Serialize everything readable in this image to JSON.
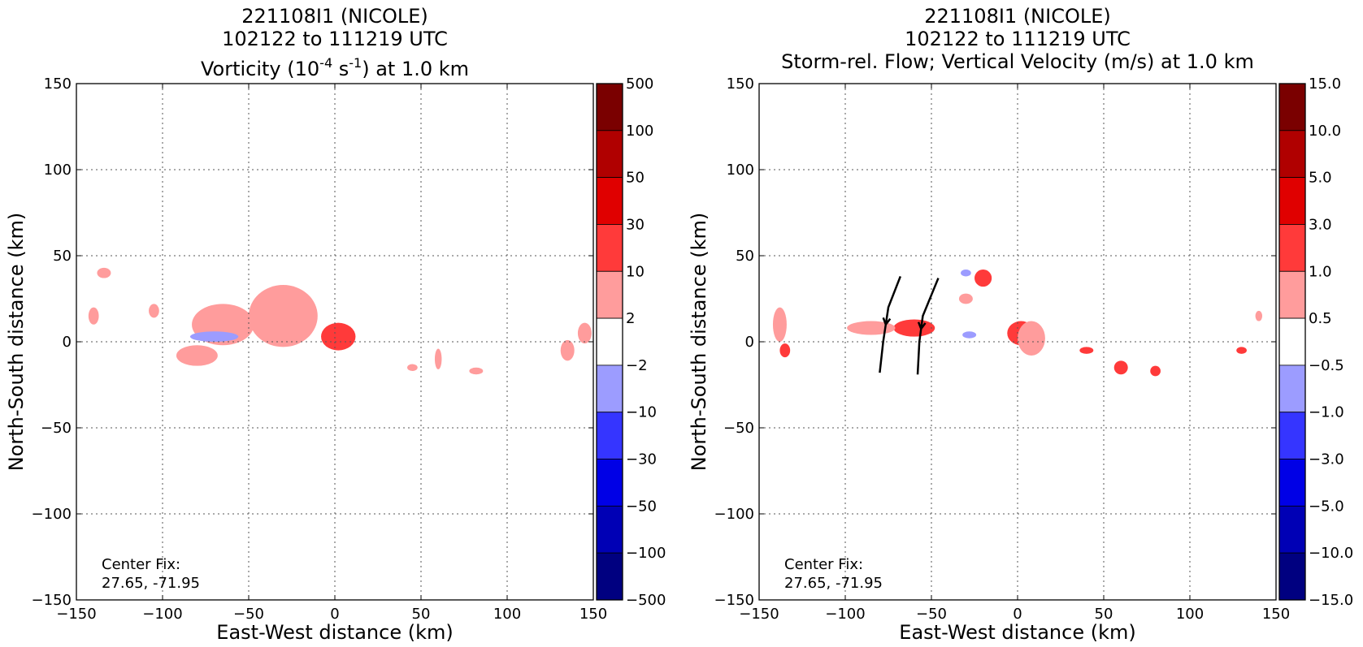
{
  "chart_data": [
    {
      "type": "heatmap",
      "title_lines": [
        "221108I1 (NICOLE)",
        "102122 to 111219 UTC"
      ],
      "title_product": {
        "prefix": "Vorticity (10",
        "exp1": "-4",
        "mid": " s",
        "exp2": "-1",
        "suffix": ") at 1.0 km"
      },
      "xlabel": "East-West distance (km)",
      "ylabel": "North-South distance (km)",
      "xlim": [
        -150,
        150
      ],
      "ylim": [
        -150,
        150
      ],
      "xticks": [
        "−150",
        "−100",
        "−50",
        "0",
        "50",
        "100",
        "150"
      ],
      "yticks": [
        "150",
        "100",
        "50",
        "0",
        "−50",
        "−100",
        "−150"
      ],
      "grid": true,
      "annotation": [
        "Center Fix:",
        "27.65, -71.95"
      ],
      "colorbar": {
        "labels": [
          "500",
          "100",
          "50",
          "30",
          "10",
          "2",
          "−2",
          "−10",
          "−30",
          "−50",
          "−100",
          "−500"
        ],
        "colors": [
          "#7a0000",
          "#b00000",
          "#e00000",
          "#ff3a3a",
          "#ff9c9c",
          "#ffffff",
          "#9c9cff",
          "#3535ff",
          "#0000e6",
          "#0000b5",
          "#000080"
        ]
      },
      "features": [
        {
          "x": 2,
          "y": 3,
          "rx": 10,
          "ry": 8,
          "level": "10-30"
        },
        {
          "x": -30,
          "y": 15,
          "rx": 20,
          "ry": 18,
          "level": "2-10"
        },
        {
          "x": -65,
          "y": 10,
          "rx": 18,
          "ry": 12,
          "level": "2-10"
        },
        {
          "x": -80,
          "y": -8,
          "rx": 12,
          "ry": 6,
          "level": "2-10"
        },
        {
          "x": -70,
          "y": 3,
          "rx": 14,
          "ry": 3,
          "level": "-10--2"
        },
        {
          "x": -134,
          "y": 40,
          "rx": 4,
          "ry": 3,
          "level": "2-10"
        },
        {
          "x": -140,
          "y": 15,
          "rx": 3,
          "ry": 5,
          "level": "2-10"
        },
        {
          "x": -105,
          "y": 18,
          "rx": 3,
          "ry": 4,
          "level": "2-10"
        },
        {
          "x": 145,
          "y": 5,
          "rx": 4,
          "ry": 6,
          "level": "2-10"
        },
        {
          "x": 135,
          "y": -5,
          "rx": 4,
          "ry": 6,
          "level": "2-10"
        },
        {
          "x": 82,
          "y": -17,
          "rx": 4,
          "ry": 2,
          "level": "2-10"
        },
        {
          "x": 60,
          "y": -10,
          "rx": 2,
          "ry": 6,
          "level": "2-10"
        },
        {
          "x": 45,
          "y": -15,
          "rx": 3,
          "ry": 2,
          "level": "2-10"
        }
      ]
    },
    {
      "type": "heatmap",
      "title_lines": [
        "221108I1 (NICOLE)",
        "102122 to 111219 UTC",
        "Storm-rel. Flow; Vertical Velocity (m/s) at 1.0 km"
      ],
      "xlabel": "East-West distance (km)",
      "ylabel": "North-South distance (km)",
      "xlim": [
        -150,
        150
      ],
      "ylim": [
        -150,
        150
      ],
      "xticks": [
        "−150",
        "−100",
        "−50",
        "0",
        "50",
        "100",
        "150"
      ],
      "yticks": [
        "150",
        "100",
        "50",
        "0",
        "−50",
        "−100",
        "−150"
      ],
      "grid": true,
      "annotation": [
        "Center Fix:",
        "27.65, -71.95"
      ],
      "colorbar": {
        "labels": [
          "15.0",
          "10.0",
          "5.0",
          "3.0",
          "1.0",
          "0.5",
          "−0.5",
          "−1.0",
          "−3.0",
          "−5.0",
          "−10.0",
          "−15.0"
        ],
        "colors": [
          "#7a0000",
          "#b00000",
          "#e00000",
          "#ff3a3a",
          "#ff9c9c",
          "#ffffff",
          "#9c9cff",
          "#3535ff",
          "#0000e6",
          "#0000b5",
          "#000080"
        ]
      },
      "features": [
        {
          "x": 2,
          "y": 5,
          "rx": 8,
          "ry": 7,
          "level": "1.0-3.0"
        },
        {
          "x": 8,
          "y": 2,
          "rx": 8,
          "ry": 10,
          "level": "0.5-1.0"
        },
        {
          "x": -60,
          "y": 8,
          "rx": 12,
          "ry": 5,
          "level": "1.0-3.0"
        },
        {
          "x": -85,
          "y": 8,
          "rx": 14,
          "ry": 4,
          "level": "0.5-1.0"
        },
        {
          "x": -20,
          "y": 37,
          "rx": 5,
          "ry": 5,
          "level": "1.0-3.0"
        },
        {
          "x": -30,
          "y": 25,
          "rx": 4,
          "ry": 3,
          "level": "0.5-1.0"
        },
        {
          "x": -138,
          "y": 10,
          "rx": 4,
          "ry": 10,
          "level": "0.5-1.0"
        },
        {
          "x": -135,
          "y": -5,
          "rx": 3,
          "ry": 4,
          "level": "1.0-3.0"
        },
        {
          "x": 40,
          "y": -5,
          "rx": 4,
          "ry": 2,
          "level": "1.0-3.0"
        },
        {
          "x": 60,
          "y": -15,
          "rx": 4,
          "ry": 4,
          "level": "1.0-3.0"
        },
        {
          "x": 80,
          "y": -17,
          "rx": 3,
          "ry": 3,
          "level": "1.0-3.0"
        },
        {
          "x": 130,
          "y": -5,
          "rx": 3,
          "ry": 2,
          "level": "1.0-3.0"
        },
        {
          "x": 140,
          "y": 15,
          "rx": 2,
          "ry": 3,
          "level": "0.5-1.0"
        },
        {
          "x": -28,
          "y": 4,
          "rx": 4,
          "ry": 2,
          "level": "-1.0--0.5"
        },
        {
          "x": -30,
          "y": 40,
          "rx": 3,
          "ry": 2,
          "level": "-1.0--0.5"
        }
      ],
      "streamlines": [
        [
          [
            -68,
            38
          ],
          [
            -75,
            20
          ],
          [
            -78,
            0
          ],
          [
            -80,
            -18
          ]
        ],
        [
          [
            -46,
            37
          ],
          [
            -55,
            15
          ],
          [
            -57,
            0
          ],
          [
            -58,
            -19
          ]
        ]
      ]
    }
  ]
}
